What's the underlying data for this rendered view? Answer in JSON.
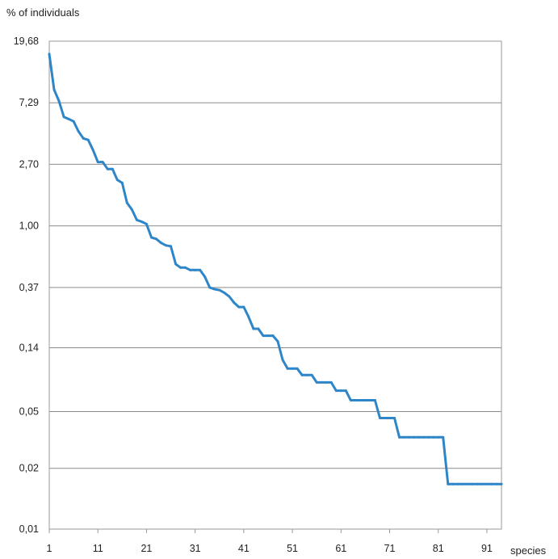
{
  "chart_data": {
    "type": "line",
    "title": "",
    "ylabel": "% of individuals",
    "xlabel": "species",
    "y_scale": "log",
    "ylim": [
      0.0075,
      19.68
    ],
    "xlim": [
      1,
      94
    ],
    "y_ticks": [
      {
        "value": 19.68,
        "label": "19,68"
      },
      {
        "value": 7.29,
        "label": "7,29"
      },
      {
        "value": 2.7,
        "label": "2,70"
      },
      {
        "value": 1.0,
        "label": "1,00"
      },
      {
        "value": 0.37,
        "label": "0,37"
      },
      {
        "value": 0.14,
        "label": "0,14"
      },
      {
        "value": 0.05,
        "label": "0,05"
      },
      {
        "value": 0.02,
        "label": "0,02"
      },
      {
        "value": 0.0075,
        "label": "0,01"
      }
    ],
    "x_ticks": [
      1,
      11,
      21,
      31,
      41,
      51,
      61,
      71,
      81,
      91
    ],
    "grid": "horizontal",
    "legend": "none",
    "line_color": "#2e86c8",
    "series": [
      {
        "x": [
          1,
          2,
          3,
          4,
          5,
          6,
          7,
          8,
          9,
          10,
          11,
          12,
          13,
          14,
          15,
          16,
          17,
          18,
          19,
          20,
          21,
          22,
          23,
          24,
          25,
          26,
          27,
          28,
          29,
          30,
          31,
          32,
          33,
          34,
          35,
          36,
          37,
          38,
          39,
          40,
          41,
          42,
          43,
          44,
          45,
          46,
          47,
          48,
          49,
          50,
          51,
          52,
          53,
          54,
          55,
          56,
          57,
          58,
          59,
          60,
          61,
          62,
          63,
          64,
          65,
          66,
          67,
          68,
          69,
          70,
          71,
          72,
          73,
          74,
          75,
          76,
          77,
          78,
          79,
          80,
          81,
          82,
          83,
          84,
          85,
          86,
          87,
          88,
          89,
          90,
          91,
          92,
          93,
          94
        ],
        "values": [
          16.0,
          9.0,
          7.5,
          5.8,
          5.6,
          5.4,
          4.6,
          4.1,
          4.0,
          3.4,
          2.8,
          2.8,
          2.5,
          2.5,
          2.1,
          2.0,
          1.45,
          1.3,
          1.1,
          1.07,
          1.03,
          0.83,
          0.81,
          0.76,
          0.73,
          0.72,
          0.54,
          0.51,
          0.51,
          0.49,
          0.49,
          0.49,
          0.44,
          0.37,
          0.36,
          0.355,
          0.34,
          0.32,
          0.29,
          0.27,
          0.27,
          0.23,
          0.19,
          0.19,
          0.17,
          0.17,
          0.17,
          0.155,
          0.115,
          0.1,
          0.1,
          0.1,
          0.09,
          0.09,
          0.09,
          0.08,
          0.08,
          0.08,
          0.08,
          0.07,
          0.07,
          0.07,
          0.06,
          0.06,
          0.06,
          0.06,
          0.06,
          0.06,
          0.045,
          0.045,
          0.045,
          0.045,
          0.033,
          0.033,
          0.033,
          0.033,
          0.033,
          0.033,
          0.033,
          0.033,
          0.033,
          0.033,
          0.0155,
          0.0155,
          0.0155,
          0.0155,
          0.0155,
          0.0155,
          0.0155,
          0.0155,
          0.0155,
          0.0155,
          0.0155,
          0.0155
        ]
      }
    ]
  }
}
